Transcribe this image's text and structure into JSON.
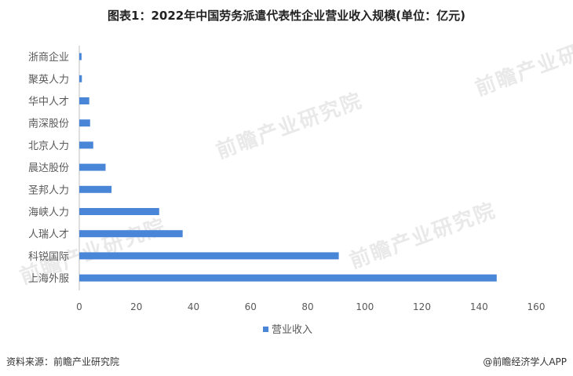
{
  "title": "图表1：2022年中国劳务派遣代表性企业营业收入规模(单位：亿元)",
  "footer": {
    "source": "资料来源：前瞻产业研究院",
    "brand": "@前瞻经济学人APP"
  },
  "watermark": "前瞻产业研究院",
  "colors": {
    "bar": "#4a86d8",
    "axis": "#bfbfbf",
    "text": "#595959"
  },
  "chart_data": {
    "type": "bar",
    "orientation": "horizontal",
    "title": "图表1：2022年中国劳务派遣代表性企业营业收入规模(单位：亿元)",
    "categories": [
      "上海外服",
      "科锐国际",
      "人瑞人才",
      "海峡人力",
      "圣邦人力",
      "晨达股份",
      "北京人力",
      "南深股份",
      "华中人才",
      "聚英人力",
      "浙商企业"
    ],
    "series": [
      {
        "name": "营业收入",
        "values": [
          146.2,
          90.9,
          36.2,
          28.0,
          11.3,
          9.2,
          4.9,
          3.8,
          3.5,
          0.9,
          0.8
        ]
      }
    ],
    "xlim": [
      0,
      160
    ],
    "xticks": [
      0,
      20,
      40,
      60,
      80,
      100,
      120,
      140,
      160
    ],
    "legend": "bottom",
    "grid": false
  }
}
